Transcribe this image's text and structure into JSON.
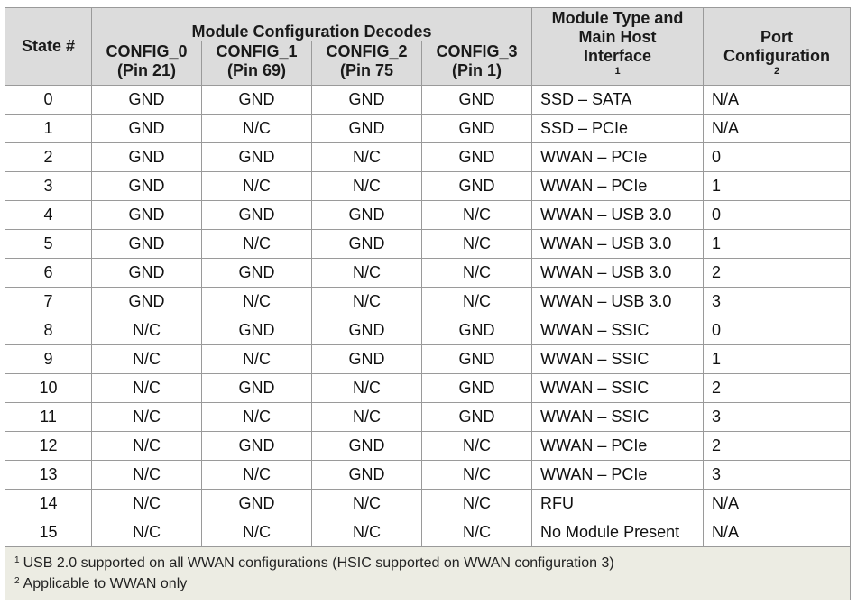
{
  "table": {
    "header": {
      "state": "State #",
      "group": "Module Configuration Decodes",
      "config": [
        {
          "name": "CONFIG_0",
          "pin": "(Pin 21)"
        },
        {
          "name": "CONFIG_1",
          "pin": "(Pin 69)"
        },
        {
          "name": "CONFIG_2",
          "pin": "(Pin 75"
        },
        {
          "name": "CONFIG_3",
          "pin": "(Pin 1)"
        }
      ],
      "module": {
        "line1": "Module Type and",
        "line2": "Main Host",
        "line3": "Interface",
        "sup": "1"
      },
      "port": {
        "line1": "Port",
        "line2": "Configuration",
        "sup": "2"
      }
    },
    "rows": [
      {
        "state": "0",
        "c0": "GND",
        "c1": "GND",
        "c2": "GND",
        "c3": "GND",
        "module": "SSD – SATA",
        "port": "N/A"
      },
      {
        "state": "1",
        "c0": "GND",
        "c1": "N/C",
        "c2": "GND",
        "c3": "GND",
        "module": "SSD – PCIe",
        "port": "N/A"
      },
      {
        "state": "2",
        "c0": "GND",
        "c1": "GND",
        "c2": "N/C",
        "c3": "GND",
        "module": "WWAN – PCIe",
        "port": "0"
      },
      {
        "state": "3",
        "c0": "GND",
        "c1": "N/C",
        "c2": "N/C",
        "c3": "GND",
        "module": "WWAN – PCIe",
        "port": "1"
      },
      {
        "state": "4",
        "c0": "GND",
        "c1": "GND",
        "c2": "GND",
        "c3": "N/C",
        "module": "WWAN – USB 3.0",
        "port": "0"
      },
      {
        "state": "5",
        "c0": "GND",
        "c1": "N/C",
        "c2": "GND",
        "c3": "N/C",
        "module": "WWAN – USB 3.0",
        "port": "1"
      },
      {
        "state": "6",
        "c0": "GND",
        "c1": "GND",
        "c2": "N/C",
        "c3": "N/C",
        "module": "WWAN – USB 3.0",
        "port": "2"
      },
      {
        "state": "7",
        "c0": "GND",
        "c1": "N/C",
        "c2": "N/C",
        "c3": "N/C",
        "module": "WWAN – USB 3.0",
        "port": "3"
      },
      {
        "state": "8",
        "c0": "N/C",
        "c1": "GND",
        "c2": "GND",
        "c3": "GND",
        "module": "WWAN – SSIC",
        "port": "0"
      },
      {
        "state": "9",
        "c0": "N/C",
        "c1": "N/C",
        "c2": "GND",
        "c3": "GND",
        "module": "WWAN – SSIC",
        "port": "1"
      },
      {
        "state": "10",
        "c0": "N/C",
        "c1": "GND",
        "c2": "N/C",
        "c3": "GND",
        "module": "WWAN – SSIC",
        "port": "2"
      },
      {
        "state": "11",
        "c0": "N/C",
        "c1": "N/C",
        "c2": "N/C",
        "c3": "GND",
        "module": "WWAN – SSIC",
        "port": "3"
      },
      {
        "state": "12",
        "c0": "N/C",
        "c1": "GND",
        "c2": "GND",
        "c3": "N/C",
        "module": "WWAN – PCIe",
        "port": "2"
      },
      {
        "state": "13",
        "c0": "N/C",
        "c1": "N/C",
        "c2": "GND",
        "c3": "N/C",
        "module": "WWAN – PCIe",
        "port": "3"
      },
      {
        "state": "14",
        "c0": "N/C",
        "c1": "GND",
        "c2": "N/C",
        "c3": "N/C",
        "module": "RFU",
        "port": "N/A"
      },
      {
        "state": "15",
        "c0": "N/C",
        "c1": "N/C",
        "c2": "N/C",
        "c3": "N/C",
        "module": "No Module Present",
        "port": "N/A"
      }
    ],
    "footnotes": [
      {
        "mark": "1",
        "text": "USB 2.0 supported on all WWAN configurations (HSIC supported on WWAN configuration 3)"
      },
      {
        "mark": "2",
        "text": "Applicable to WWAN only"
      }
    ]
  }
}
